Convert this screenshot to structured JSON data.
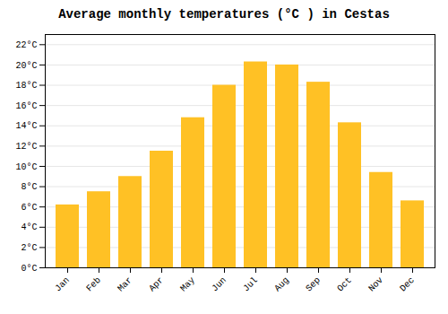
{
  "chart_data": {
    "type": "bar",
    "title": "Average monthly temperatures (°C ) in Cestas",
    "categories": [
      "Jan",
      "Feb",
      "Mar",
      "Apr",
      "May",
      "Jun",
      "Jul",
      "Aug",
      "Sep",
      "Oct",
      "Nov",
      "Dec"
    ],
    "values": [
      6.2,
      7.5,
      9.0,
      11.5,
      14.8,
      18.0,
      20.3,
      20.0,
      18.3,
      14.3,
      9.4,
      6.6
    ],
    "color": "#FFC125",
    "ylim": [
      0,
      23
    ],
    "yticks": [
      {
        "value": 0,
        "label": "0°C"
      },
      {
        "value": 2,
        "label": "2°C"
      },
      {
        "value": 4,
        "label": "4°C"
      },
      {
        "value": 6,
        "label": "6°C"
      },
      {
        "value": 8,
        "label": "8°C"
      },
      {
        "value": 10,
        "label": "10°C"
      },
      {
        "value": 12,
        "label": "12°C"
      },
      {
        "value": 14,
        "label": "14°C"
      },
      {
        "value": 16,
        "label": "16°C"
      },
      {
        "value": 18,
        "label": "18°C"
      },
      {
        "value": 20,
        "label": "20°C"
      },
      {
        "value": 22,
        "label": "22°C"
      }
    ],
    "grid": true
  }
}
